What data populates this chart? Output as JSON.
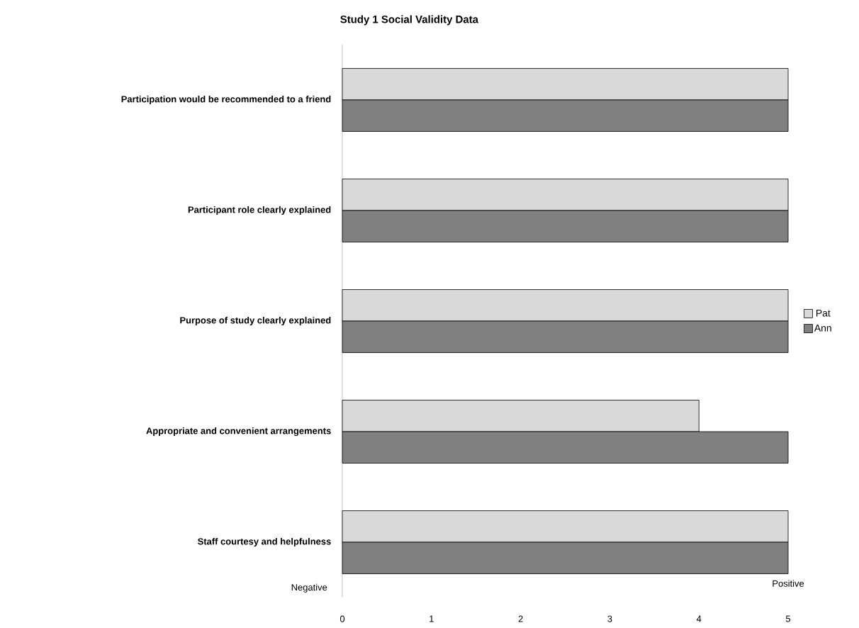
{
  "chart_data": {
    "type": "bar",
    "orientation": "horizontal",
    "title": "Study 1 Social Validity Data",
    "categories": [
      "Participation would be recommended to a friend",
      "Participant role clearly explained",
      "Purpose of study clearly explained",
      "Appropriate and convenient arrangements",
      "Staff courtesy and helpfulness"
    ],
    "series": [
      {
        "name": "Pat",
        "color": "#d9d9d9",
        "values": [
          5,
          5,
          5,
          4,
          5
        ]
      },
      {
        "name": "Ann",
        "color": "#808080",
        "values": [
          5,
          5,
          5,
          5,
          5
        ]
      }
    ],
    "xlim": [
      0,
      5
    ],
    "xticks": [
      0,
      1,
      2,
      3,
      4,
      5
    ],
    "grid": false,
    "legend": "right",
    "annotations": [
      "Negative",
      "Positive"
    ]
  }
}
